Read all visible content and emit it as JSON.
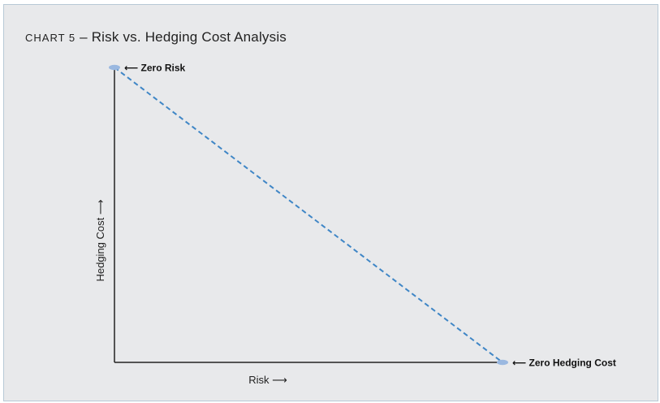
{
  "chart_data": {
    "type": "line",
    "title_prefix": "CHART 5",
    "title_separator": "–",
    "title": "Risk vs. Hedging Cost Analysis",
    "xlabel": "Risk ⟶",
    "ylabel": "Hedging Cost ⟶",
    "xlim": [
      0,
      1
    ],
    "ylim": [
      0,
      1
    ],
    "grid": false,
    "series": [
      {
        "line_style": "dashed",
        "color": "#3f86c6",
        "points": [
          {
            "x": 0,
            "y": 1,
            "label": "⟵ Zero Risk"
          },
          {
            "x": 1,
            "y": 0,
            "label": "⟵ Zero Hedging Cost"
          }
        ]
      }
    ],
    "marker_color": "#9ab8e0",
    "axis_color": "#222222"
  }
}
